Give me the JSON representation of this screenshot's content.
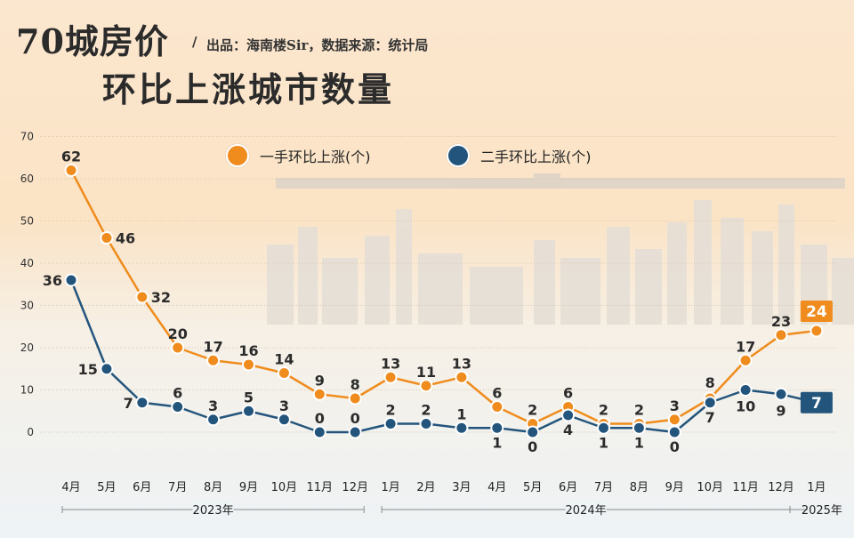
{
  "header": {
    "title_line1": "70城房价",
    "title_line2": "环比上涨城市数量",
    "slash": "/",
    "source": "出品：海南楼Sir，数据来源：统计局"
  },
  "colors": {
    "new_home": "#ef8c1d",
    "second_hand": "#23557c",
    "grid": "#d9c7b0",
    "axis_text": "#333333"
  },
  "chart_data": {
    "type": "line",
    "title": "70城房价 环比上涨城市数量",
    "xlabel": "",
    "ylabel": "",
    "ylim": [
      0,
      70
    ],
    "yticks": [
      0,
      10,
      20,
      30,
      40,
      50,
      60,
      70
    ],
    "categories": [
      "4月",
      "5月",
      "6月",
      "7月",
      "8月",
      "9月",
      "10月",
      "11月",
      "12月",
      "1月",
      "2月",
      "3月",
      "4月",
      "5月",
      "6月",
      "7月",
      "8月",
      "9月",
      "10月",
      "11月",
      "12月",
      "1月"
    ],
    "year_groups": [
      {
        "label": "2023年",
        "start": 0,
        "end": 8
      },
      {
        "label": "2024年",
        "start": 9,
        "end": 20
      },
      {
        "label": "2025年",
        "start": 21,
        "end": 21
      }
    ],
    "series": [
      {
        "name": "一手环比上涨(个)",
        "key": "new_home",
        "values": [
          62,
          46,
          32,
          20,
          17,
          16,
          14,
          9,
          8,
          13,
          11,
          13,
          6,
          2,
          6,
          2,
          2,
          3,
          8,
          17,
          23,
          24
        ]
      },
      {
        "name": "二手环比上涨(个)",
        "key": "second_hand",
        "values": [
          36,
          15,
          7,
          6,
          3,
          5,
          3,
          0,
          0,
          2,
          2,
          1,
          1,
          0,
          4,
          1,
          1,
          0,
          7,
          10,
          9,
          7
        ]
      }
    ],
    "legend_position": "top"
  }
}
